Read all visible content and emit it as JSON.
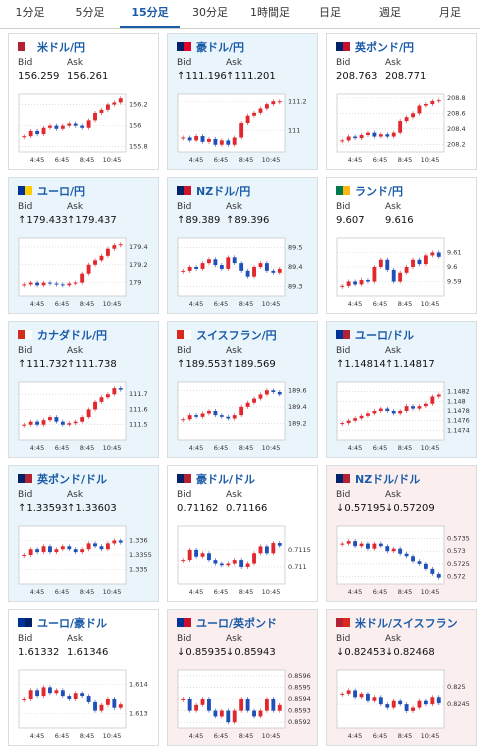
{
  "tabs": {
    "items": [
      "1分足",
      "5分足",
      "15分足",
      "30分足",
      "1時間足",
      "日足",
      "週足",
      "月足"
    ],
    "active": 2
  },
  "labels": {
    "bid": "Bid",
    "ask": "Ask"
  },
  "xlabels": [
    "4:45",
    "6:45",
    "8:45",
    "10:45"
  ],
  "panels": [
    {
      "name": "米ドル/円",
      "flag": [
        "#b22234",
        "#fff"
      ],
      "tone": "neutral",
      "bid": "156.259",
      "ask": "156.261",
      "chart_data": {
        "type": "candle",
        "ylim": [
          155.75,
          156.3
        ],
        "yticks": [
          156.2,
          156,
          155.8
        ],
        "values": [
          155.9,
          155.95,
          155.92,
          155.98,
          156.0,
          155.97,
          156.0,
          156.02,
          156.0,
          155.98,
          156.05,
          156.12,
          156.15,
          156.2,
          156.22,
          156.26
        ]
      }
    },
    {
      "name": "豪ドル/円",
      "flag": [
        "#012169",
        "#e4002b"
      ],
      "tone": "up",
      "bid": "↑111.196",
      "ask": "↑111.201",
      "chart_data": {
        "type": "candle",
        "ylim": [
          110.85,
          111.25
        ],
        "yticks": [
          111.2,
          111
        ],
        "values": [
          110.95,
          110.93,
          110.96,
          110.92,
          110.94,
          110.9,
          110.93,
          110.9,
          110.95,
          111.05,
          111.1,
          111.12,
          111.15,
          111.18,
          111.2,
          111.2
        ]
      }
    },
    {
      "name": "英ポンド/円",
      "flag": [
        "#012169",
        "#c8102e"
      ],
      "tone": "neutral",
      "bid": "208.763",
      "ask": "208.771",
      "chart_data": {
        "type": "candle",
        "ylim": [
          208.1,
          208.85
        ],
        "yticks": [
          208.8,
          208.6,
          208.4,
          208.2
        ],
        "values": [
          208.25,
          208.3,
          208.28,
          208.32,
          208.35,
          208.3,
          208.33,
          208.3,
          208.35,
          208.5,
          208.55,
          208.6,
          208.7,
          208.72,
          208.76,
          208.77
        ]
      }
    },
    {
      "name": "ユーロ/円",
      "flag": [
        "#003399",
        "#ffcc00"
      ],
      "tone": "up",
      "bid": "↑179.433",
      "ask": "↑179.437",
      "chart_data": {
        "type": "candle",
        "ylim": [
          178.85,
          179.5
        ],
        "yticks": [
          179.4,
          179.2,
          179
        ],
        "values": [
          178.98,
          179.0,
          178.97,
          179.0,
          178.99,
          178.98,
          178.97,
          178.99,
          179.0,
          179.1,
          179.2,
          179.25,
          179.3,
          179.38,
          179.42,
          179.43
        ]
      }
    },
    {
      "name": "NZドル/円",
      "flag": [
        "#012169",
        "#cc142b"
      ],
      "tone": "up",
      "bid": "↑89.389",
      "ask": "↑89.396",
      "chart_data": {
        "type": "candle",
        "ylim": [
          89.25,
          89.55
        ],
        "yticks": [
          89.5,
          89.4,
          89.3
        ],
        "values": [
          89.38,
          89.4,
          89.39,
          89.42,
          89.44,
          89.41,
          89.39,
          89.45,
          89.42,
          89.38,
          89.35,
          89.4,
          89.42,
          89.38,
          89.37,
          89.39
        ]
      }
    },
    {
      "name": "ランド/円",
      "flag": [
        "#007a4d",
        "#ffb612"
      ],
      "tone": "neutral",
      "bid": "9.607",
      "ask": "9.616",
      "chart_data": {
        "type": "candle",
        "ylim": [
          9.58,
          9.62
        ],
        "yticks": [
          9.61,
          9.6,
          9.59
        ],
        "values": [
          9.587,
          9.59,
          9.588,
          9.591,
          9.59,
          9.6,
          9.605,
          9.598,
          9.59,
          9.596,
          9.6,
          9.605,
          9.602,
          9.608,
          9.61,
          9.607
        ]
      }
    },
    {
      "name": "カナダドル/円",
      "flag": [
        "#d52b1e",
        "#fff"
      ],
      "tone": "up",
      "bid": "↑111.732",
      "ask": "↑111.738",
      "chart_data": {
        "type": "candle",
        "ylim": [
          111.4,
          111.78
        ],
        "yticks": [
          111.7,
          111.6,
          111.5
        ],
        "values": [
          111.5,
          111.52,
          111.5,
          111.53,
          111.55,
          111.52,
          111.5,
          111.51,
          111.52,
          111.55,
          111.6,
          111.65,
          111.68,
          111.7,
          111.74,
          111.73
        ]
      }
    },
    {
      "name": "スイスフラン/円",
      "flag": [
        "#da291c",
        "#fff"
      ],
      "tone": "up",
      "bid": "↑189.553",
      "ask": "↑189.569",
      "chart_data": {
        "type": "candle",
        "ylim": [
          189.0,
          189.7
        ],
        "yticks": [
          189.6,
          189.4,
          189.2
        ],
        "values": [
          189.25,
          189.3,
          189.28,
          189.32,
          189.35,
          189.3,
          189.28,
          189.26,
          189.3,
          189.4,
          189.45,
          189.5,
          189.55,
          189.6,
          189.58,
          189.55
        ]
      }
    },
    {
      "name": "ユーロ/ドル",
      "flag": [
        "#003399",
        "#b22234"
      ],
      "tone": "up",
      "bid": "↑1.14814",
      "ask": "↑1.14817",
      "chart_data": {
        "type": "candle",
        "ylim": [
          1.1472,
          1.1484
        ],
        "yticks": [
          1.1482,
          1.148,
          1.1478,
          1.1476,
          1.1474
        ],
        "values": [
          1.14755,
          1.1476,
          1.14765,
          1.1477,
          1.14775,
          1.1478,
          1.14785,
          1.1478,
          1.14775,
          1.1478,
          1.1479,
          1.14785,
          1.1479,
          1.14795,
          1.1481,
          1.14814
        ]
      }
    },
    {
      "name": "英ポンド/ドル",
      "flag": [
        "#012169",
        "#b22234"
      ],
      "tone": "up",
      "bid": "↑1.33593",
      "ask": "↑1.33603",
      "chart_data": {
        "type": "candle",
        "ylim": [
          1.3345,
          1.3365
        ],
        "yticks": [
          1.336,
          1.3355,
          1.335
        ],
        "values": [
          1.3355,
          1.3357,
          1.3356,
          1.3358,
          1.3356,
          1.3357,
          1.3358,
          1.3357,
          1.3356,
          1.3357,
          1.3359,
          1.3358,
          1.3357,
          1.3359,
          1.336,
          1.33593
        ]
      }
    },
    {
      "name": "豪ドル/ドル",
      "flag": [
        "#012169",
        "#b22234"
      ],
      "tone": "neutral",
      "bid": "0.71162",
      "ask": "0.71166",
      "chart_data": {
        "type": "candle",
        "ylim": [
          0.7105,
          0.7122
        ],
        "yticks": [
          0.7115,
          0.711
        ],
        "values": [
          0.7112,
          0.7115,
          0.7113,
          0.7114,
          0.7112,
          0.7111,
          0.71105,
          0.7111,
          0.7112,
          0.711,
          0.7111,
          0.7114,
          0.7116,
          0.7114,
          0.7117,
          0.71162
        ]
      }
    },
    {
      "name": "NZドル/ドル",
      "flag": [
        "#012169",
        "#b22234"
      ],
      "tone": "down",
      "bid": "↓0.57195",
      "ask": "↓0.57209",
      "chart_data": {
        "type": "candle",
        "ylim": [
          0.5717,
          0.574
        ],
        "yticks": [
          0.5735,
          0.573,
          0.5725,
          0.572
        ],
        "values": [
          0.5733,
          0.5734,
          0.5732,
          0.5733,
          0.5731,
          0.5733,
          0.5732,
          0.573,
          0.5731,
          0.5729,
          0.5728,
          0.5726,
          0.5725,
          0.5723,
          0.5721,
          0.57195
        ]
      }
    },
    {
      "name": "ユーロ/豪ドル",
      "flag": [
        "#003399",
        "#012169"
      ],
      "tone": "neutral",
      "bid": "1.61332",
      "ask": "1.61346",
      "chart_data": {
        "type": "candle",
        "ylim": [
          1.6125,
          1.6145
        ],
        "yticks": [
          1.614,
          1.613
        ],
        "values": [
          1.6135,
          1.6138,
          1.6136,
          1.6139,
          1.6137,
          1.6138,
          1.6136,
          1.6135,
          1.6137,
          1.6136,
          1.6134,
          1.6131,
          1.6133,
          1.6135,
          1.6132,
          1.61332
        ]
      }
    },
    {
      "name": "ユーロ/英ポンド",
      "flag": [
        "#003399",
        "#c8102e"
      ],
      "tone": "down",
      "bid": "↓0.85935",
      "ask": "↓0.85943",
      "chart_data": {
        "type": "candle",
        "ylim": [
          0.85915,
          0.85965
        ],
        "yticks": [
          0.8596,
          0.8595,
          0.8594,
          0.8593,
          0.8592
        ],
        "values": [
          0.8594,
          0.8593,
          0.85935,
          0.8594,
          0.8593,
          0.85925,
          0.8593,
          0.8592,
          0.8593,
          0.8594,
          0.8593,
          0.85925,
          0.8593,
          0.8594,
          0.8593,
          0.85935
        ]
      }
    },
    {
      "name": "米ドル/スイスフラン",
      "flag": [
        "#b22234",
        "#da291c"
      ],
      "tone": "down",
      "bid": "↓0.82453",
      "ask": "↓0.82468",
      "chart_data": {
        "type": "candle",
        "ylim": [
          0.8238,
          0.8255
        ],
        "yticks": [
          0.825,
          0.8245
        ],
        "values": [
          0.8248,
          0.8249,
          0.8247,
          0.8248,
          0.8246,
          0.8247,
          0.8245,
          0.8244,
          0.8246,
          0.8245,
          0.8243,
          0.8244,
          0.8246,
          0.8245,
          0.8247,
          0.82453
        ]
      }
    }
  ]
}
